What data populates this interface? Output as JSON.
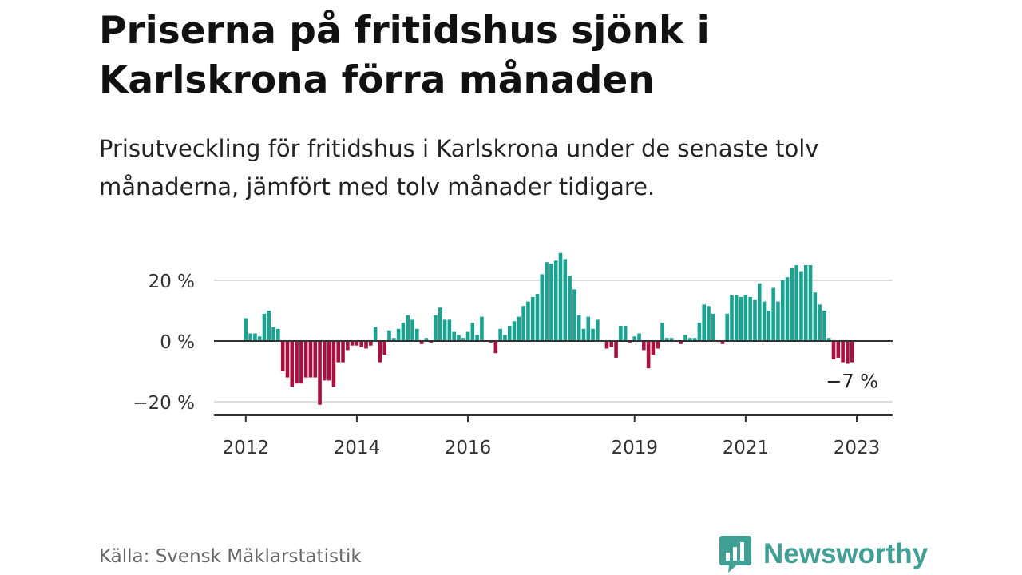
{
  "header": {
    "title": "Priserna på fritidshus sjönk i Karlskrona förra månaden",
    "subtitle": "Prisutveckling för fritidshus i Karlskrona under de senaste tolv månaderna, jämfört med tolv månader tidigare."
  },
  "footer": {
    "source": "Källa: Svensk Mäklarstatistik",
    "brand": "Newsworthy"
  },
  "colors": {
    "positive": "#1aa391",
    "negative": "#a8103f",
    "brand": "#41a096"
  },
  "chart_data": {
    "type": "bar",
    "start": "2012-01",
    "x_tick_labels": [
      "2012",
      "2014",
      "2016",
      "2019",
      "2021",
      "2023"
    ],
    "y_tick_labels": [
      "20 %",
      "0 %",
      "−20 %"
    ],
    "y_ticks": [
      20,
      0,
      -20
    ],
    "ylim": [
      -25,
      30
    ],
    "end_label": "−7 %",
    "values": [
      7.5,
      2.5,
      2.5,
      1.5,
      9,
      10,
      4.5,
      4,
      -10,
      -12,
      -15,
      -14,
      -14,
      -12,
      -12,
      -12,
      -21,
      -13,
      -13,
      -15,
      -7,
      -7,
      -3,
      -1.5,
      -1.5,
      -2,
      -2.5,
      -1.5,
      4.5,
      -7,
      -4.5,
      3.5,
      1,
      4,
      6,
      8.5,
      7,
      4,
      -1,
      1,
      -0.5,
      8.5,
      11,
      7,
      7,
      3,
      2,
      1,
      3,
      6,
      2,
      8,
      0,
      -0.5,
      -4,
      4,
      2,
      5,
      6.5,
      8,
      11.5,
      13,
      14.5,
      15.5,
      22,
      26,
      25.5,
      26.5,
      29,
      27,
      21.5,
      17,
      8.5,
      4,
      8,
      4,
      7,
      0,
      -2.5,
      -2,
      -5.5,
      5,
      5,
      -0.5,
      1.5,
      2.5,
      -3,
      -9,
      -4.5,
      -2.5,
      6,
      1,
      1,
      0,
      -1,
      2,
      1,
      1,
      6,
      12,
      11.5,
      9,
      0,
      -1,
      9,
      15,
      15,
      14.5,
      15,
      14.5,
      13.5,
      19,
      13,
      10,
      17.5,
      13,
      20,
      21,
      24,
      25,
      23,
      25,
      25,
      16,
      12,
      10,
      1,
      -6,
      -5.5,
      -7,
      -7.5,
      -7
    ]
  }
}
